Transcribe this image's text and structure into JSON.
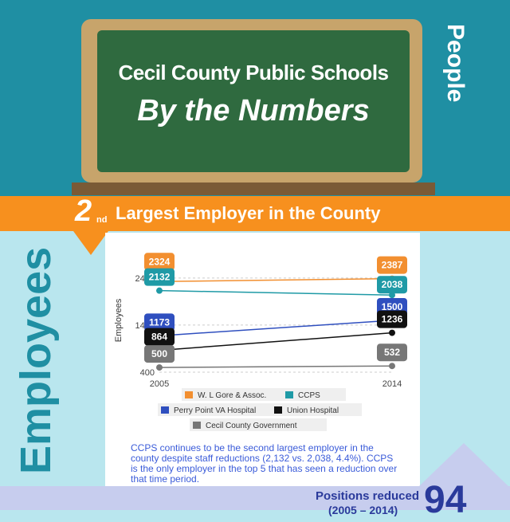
{
  "header": {
    "line1": "Cecil County Public Schools",
    "line2": "By the Numbers",
    "side": "People"
  },
  "banner": {
    "rank": "2",
    "rank_suffix": "nd",
    "text": "Largest Employer in the County"
  },
  "section_label": "Employees",
  "chart_data": {
    "type": "line",
    "x": [
      "2005",
      "2014"
    ],
    "ylabel": "Employees",
    "ytick_labels": [
      "400",
      "1400",
      "2400"
    ],
    "ylim": [
      400,
      2600
    ],
    "series": [
      {
        "name": "W. L Gore & Assoc.",
        "values": [
          2324,
          2387
        ],
        "labels": [
          "2324",
          "2387"
        ],
        "color": "#f28f30"
      },
      {
        "name": "CCPS",
        "values": [
          2132,
          2038
        ],
        "labels": [
          "2132",
          "2038"
        ],
        "color": "#1f9aa6"
      },
      {
        "name": "Perry Point VA Hospital",
        "values": [
          1173,
          1500
        ],
        "labels": [
          "1173",
          "1500"
        ],
        "color": "#2f4fbf"
      },
      {
        "name": "Union Hospital",
        "values": [
          864,
          1236
        ],
        "labels": [
          "864",
          "1236"
        ],
        "color": "#111111"
      },
      {
        "name": "Cecil County Government",
        "values": [
          500,
          532
        ],
        "labels": [
          "500",
          "532"
        ],
        "color": "#777777"
      }
    ],
    "legend_position": "bottom"
  },
  "description": "CCPS continues to be the second largest employer in the county despite staff reductions (2,132 vs. 2,038, 4.4%). CCPS is the only employer in the top 5 that has seen a reduction over that time period.",
  "footer": {
    "label": "Positions reduced",
    "sub": "(2005 – 2014)",
    "value": "94"
  }
}
